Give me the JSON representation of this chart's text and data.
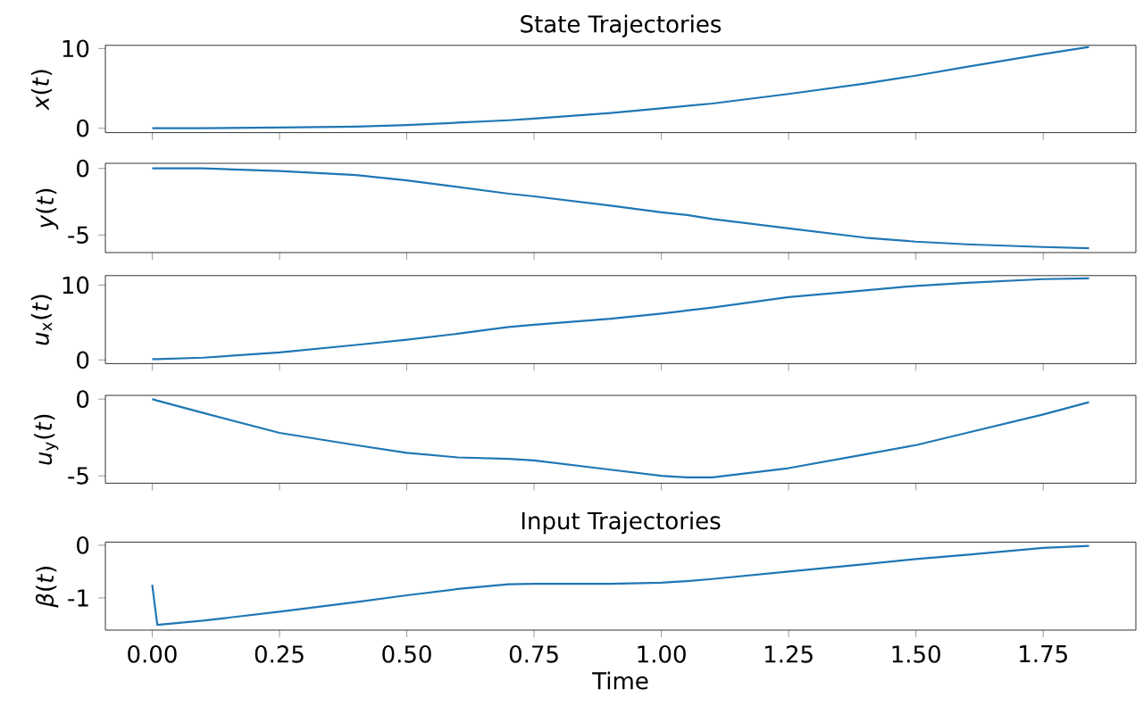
{
  "chart_data": [
    {
      "type": "line",
      "title": "State Trajectories",
      "ylabel": "*x*(*t*)",
      "tick_labels": "y",
      "grid": false,
      "xlim": [
        -0.092,
        1.932
      ],
      "ylim": [
        -0.55,
        10.4
      ],
      "xticks": [
        {
          "value": 0,
          "label": null
        },
        {
          "value": 0.25,
          "label": null
        },
        {
          "value": 0.5,
          "label": null
        },
        {
          "value": 0.75,
          "label": null
        },
        {
          "value": 1,
          "label": null
        },
        {
          "value": 1.25,
          "label": null
        },
        {
          "value": 1.5,
          "label": null
        },
        {
          "value": 1.75,
          "label": null
        }
      ],
      "yticks": [
        0,
        10
      ],
      "series": [
        {
          "color": "#1f77b4",
          "x": [
            0,
            0.01,
            0.1,
            0.25,
            0.4,
            0.5,
            0.6,
            0.7,
            0.75,
            0.9,
            1.0,
            1.05,
            1.1,
            1.25,
            1.4,
            1.5,
            1.6,
            1.75,
            1.84
          ],
          "values": [
            0,
            0,
            0,
            0.1,
            0.2,
            0.4,
            0.7,
            1.0,
            1.2,
            1.9,
            2.5,
            2.8,
            3.1,
            4.3,
            5.6,
            6.6,
            7.7,
            9.3,
            10.2
          ]
        }
      ]
    },
    {
      "type": "line",
      "ylabel": "*y*(*t*)",
      "tick_labels": "y",
      "grid": false,
      "xlim": [
        -0.092,
        1.932
      ],
      "ylim": [
        -6.32,
        0.38
      ],
      "xticks": [
        {
          "value": 0,
          "label": null
        },
        {
          "value": 0.25,
          "label": null
        },
        {
          "value": 0.5,
          "label": null
        },
        {
          "value": 0.75,
          "label": null
        },
        {
          "value": 1,
          "label": null
        },
        {
          "value": 1.25,
          "label": null
        },
        {
          "value": 1.5,
          "label": null
        },
        {
          "value": 1.75,
          "label": null
        }
      ],
      "yticks": [
        -5,
        0
      ],
      "series": [
        {
          "color": "#1f77b4",
          "x": [
            0,
            0.01,
            0.1,
            0.25,
            0.4,
            0.5,
            0.6,
            0.7,
            0.75,
            0.9,
            1.0,
            1.05,
            1.1,
            1.25,
            1.4,
            1.5,
            1.6,
            1.75,
            1.84
          ],
          "values": [
            0,
            0,
            0,
            -0.2,
            -0.5,
            -0.9,
            -1.4,
            -1.9,
            -2.1,
            -2.8,
            -3.3,
            -3.5,
            -3.8,
            -4.5,
            -5.2,
            -5.5,
            -5.7,
            -5.9,
            -6.0
          ]
        }
      ]
    },
    {
      "type": "line",
      "ylabel": "*u*$_{x}$(*t*)",
      "tick_labels": "y",
      "grid": false,
      "xlim": [
        -0.092,
        1.932
      ],
      "ylim": [
        -0.49,
        11.27
      ],
      "xticks": [
        {
          "value": 0,
          "label": null
        },
        {
          "value": 0.25,
          "label": null
        },
        {
          "value": 0.5,
          "label": null
        },
        {
          "value": 0.75,
          "label": null
        },
        {
          "value": 1,
          "label": null
        },
        {
          "value": 1.25,
          "label": null
        },
        {
          "value": 1.5,
          "label": null
        },
        {
          "value": 1.75,
          "label": null
        }
      ],
      "yticks": [
        0,
        10
      ],
      "series": [
        {
          "color": "#1f77b4",
          "x": [
            0,
            0.01,
            0.1,
            0.25,
            0.4,
            0.5,
            0.6,
            0.7,
            0.75,
            0.9,
            1.0,
            1.05,
            1.1,
            1.25,
            1.4,
            1.5,
            1.6,
            1.75,
            1.84
          ],
          "values": [
            0.1,
            0.1,
            0.3,
            1.0,
            2.0,
            2.7,
            3.5,
            4.4,
            4.7,
            5.5,
            6.2,
            6.6,
            7.0,
            8.4,
            9.3,
            9.9,
            10.3,
            10.8,
            10.9
          ]
        }
      ]
    },
    {
      "type": "line",
      "ylabel": "*u*$_{y}$(*t*)",
      "tick_labels": "y",
      "grid": false,
      "xlim": [
        -0.092,
        1.932
      ],
      "ylim": [
        -5.48,
        0.24
      ],
      "xticks": [
        {
          "value": 0,
          "label": null
        },
        {
          "value": 0.25,
          "label": null
        },
        {
          "value": 0.5,
          "label": null
        },
        {
          "value": 0.75,
          "label": null
        },
        {
          "value": 1,
          "label": null
        },
        {
          "value": 1.25,
          "label": null
        },
        {
          "value": 1.5,
          "label": null
        },
        {
          "value": 1.75,
          "label": null
        }
      ],
      "yticks": [
        -5,
        0
      ],
      "series": [
        {
          "color": "#1f77b4",
          "x": [
            0,
            0.01,
            0.1,
            0.25,
            0.4,
            0.5,
            0.6,
            0.7,
            0.75,
            0.9,
            1.0,
            1.05,
            1.1,
            1.25,
            1.4,
            1.5,
            1.6,
            1.75,
            1.84
          ],
          "values": [
            0,
            -0.1,
            -0.9,
            -2.2,
            -3.0,
            -3.5,
            -3.8,
            -3.9,
            -4.0,
            -4.6,
            -5.0,
            -5.1,
            -5.1,
            -4.5,
            -3.6,
            -3.0,
            -2.2,
            -1.0,
            -0.2
          ]
        }
      ]
    },
    {
      "type": "line",
      "title": "Input Trajectories",
      "xlabel": "Time",
      "ylabel": "*β*(*t*)",
      "grid": false,
      "xlim": [
        -0.092,
        1.932
      ],
      "ylim": [
        -1.61,
        0.06
      ],
      "xticks": [
        {
          "value": 0,
          "label": "0.00"
        },
        {
          "value": 0.25,
          "label": "0.25"
        },
        {
          "value": 0.5,
          "label": "0.50"
        },
        {
          "value": 0.75,
          "label": "0.75"
        },
        {
          "value": 1,
          "label": "1.00"
        },
        {
          "value": 1.25,
          "label": "1.25"
        },
        {
          "value": 1.5,
          "label": "1.50"
        },
        {
          "value": 1.75,
          "label": "1.75"
        }
      ],
      "yticks": [
        -1,
        0
      ],
      "series": [
        {
          "color": "#1f77b4",
          "x": [
            0,
            0.01,
            0.1,
            0.25,
            0.4,
            0.5,
            0.6,
            0.7,
            0.75,
            0.9,
            1.0,
            1.05,
            1.1,
            1.25,
            1.4,
            1.5,
            1.6,
            1.75,
            1.84
          ],
          "values": [
            -0.75,
            -1.51,
            -1.43,
            -1.26,
            -1.08,
            -0.95,
            -0.83,
            -0.74,
            -0.73,
            -0.73,
            -0.71,
            -0.68,
            -0.64,
            -0.5,
            -0.36,
            -0.26,
            -0.18,
            -0.05,
            -0.01
          ]
        }
      ]
    }
  ]
}
